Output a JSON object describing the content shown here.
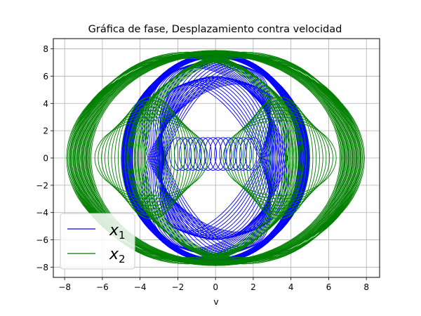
{
  "chart_data": {
    "type": "line",
    "title": "Gráfica de fase, Desplazamiento contra velocidad",
    "xlabel": "v",
    "ylabel": "",
    "xlim": [
      -8.6,
      8.7
    ],
    "ylim": [
      -8.75,
      8.75
    ],
    "xticks": [
      -8,
      -6,
      -4,
      -2,
      0,
      2,
      4,
      6,
      8
    ],
    "xtick_labels": [
      "−8",
      "−6",
      "−4",
      "−2",
      "0",
      "2",
      "4",
      "6",
      "8"
    ],
    "yticks": [
      -8,
      -6,
      -4,
      -2,
      0,
      2,
      4,
      6,
      8
    ],
    "ytick_labels": [
      "−8",
      "−6",
      "−4",
      "−2",
      "0",
      "2",
      "4",
      "6",
      "8"
    ],
    "grid": true,
    "legend": "lower-left",
    "series": [
      {
        "name": "x",
        "subscript": "1",
        "color": "#0000ff",
        "trajectory": "dense quasi-periodic phase loops",
        "v_range": [
          -5.0,
          5.0
        ],
        "x_range": [
          -7.8,
          7.8
        ],
        "components": [
          {
            "kind": "outer-band",
            "cx": 0,
            "cy": 0,
            "ax_min": 4.4,
            "ax_max": 5.0,
            "ay_min": 7.0,
            "ay_max": 7.7,
            "loops": 22
          },
          {
            "kind": "lens-up",
            "cx": 0,
            "cy": 0.6,
            "ax_min": 2.4,
            "ax_max": 3.6,
            "ay_min": 5.8,
            "ay_max": 6.6,
            "loops": 18
          },
          {
            "kind": "lens-down",
            "cx": 0,
            "cy": -0.6,
            "ax_min": 2.4,
            "ax_max": 3.6,
            "ay_min": 5.8,
            "ay_max": 6.6,
            "loops": 18
          },
          {
            "kind": "central-tube",
            "x_from": -2.0,
            "x_to": 2.0,
            "cy": 0.3,
            "ry": 1.2,
            "rx": 0.45,
            "loops": 16
          }
        ]
      },
      {
        "name": "x",
        "subscript": "2",
        "color": "#008000",
        "trajectory": "dense quasi-periodic phase loops",
        "v_range": [
          -8.0,
          8.0
        ],
        "x_range": [
          -7.9,
          7.9
        ],
        "components": [
          {
            "kind": "outer-band",
            "cx": 0,
            "cy": 0,
            "ax_min": 6.6,
            "ax_max": 7.9,
            "ay_min": 7.2,
            "ay_max": 7.9,
            "loops": 24
          },
          {
            "kind": "offset-left",
            "cx": -1.5,
            "cy": 0,
            "ax_min": 5.2,
            "ax_max": 6.2,
            "ay_min": 6.8,
            "ay_max": 7.8,
            "loops": 14
          },
          {
            "kind": "offset-right",
            "cx": 1.5,
            "cy": 0,
            "ax_min": 5.2,
            "ax_max": 6.2,
            "ay_min": 6.8,
            "ay_max": 7.8,
            "loops": 14
          },
          {
            "kind": "eye-left",
            "cx": -3.4,
            "cy": 0,
            "ax_min": 0.35,
            "ax_max": 3.0,
            "ay_min": 0.9,
            "ay_max": 4.6,
            "loops": 16
          },
          {
            "kind": "eye-right",
            "cx": 3.4,
            "cy": 0,
            "ax_min": 0.35,
            "ax_max": 3.0,
            "ay_min": 0.9,
            "ay_max": 4.6,
            "loops": 16
          }
        ]
      }
    ]
  }
}
